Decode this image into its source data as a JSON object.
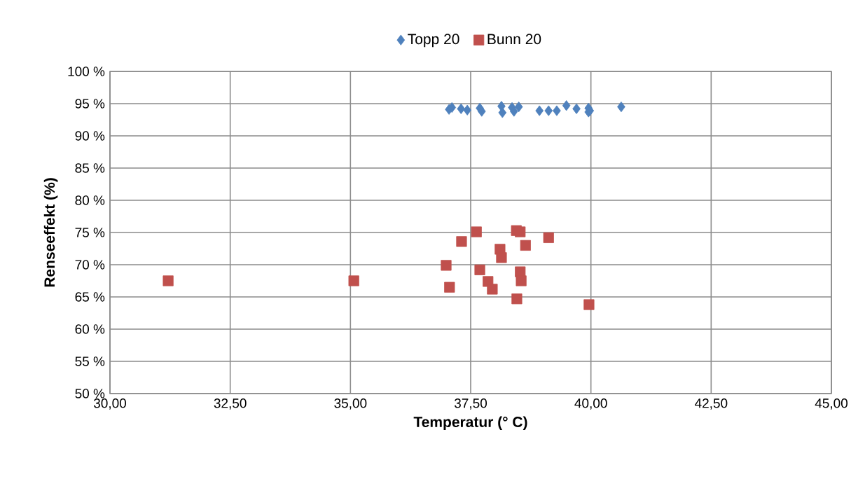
{
  "chart_data": {
    "type": "scatter",
    "xlabel": "Temperatur (° C)",
    "ylabel": "Renseeffekt (%)",
    "xlim": [
      30,
      45
    ],
    "ylim": [
      50,
      100
    ],
    "xticks": [
      {
        "value": 30,
        "label": "30,00"
      },
      {
        "value": 32.5,
        "label": "32,50"
      },
      {
        "value": 35,
        "label": "35,00"
      },
      {
        "value": 37.5,
        "label": "37,50"
      },
      {
        "value": 40,
        "label": "40,00"
      },
      {
        "value": 42.5,
        "label": "42,50"
      },
      {
        "value": 45,
        "label": "45,00"
      }
    ],
    "yticks": [
      {
        "value": 50,
        "label": "50 %"
      },
      {
        "value": 55,
        "label": "55 %"
      },
      {
        "value": 60,
        "label": "60 %"
      },
      {
        "value": 65,
        "label": "65 %"
      },
      {
        "value": 70,
        "label": "70 %"
      },
      {
        "value": 75,
        "label": "75 %"
      },
      {
        "value": 80,
        "label": "80 %"
      },
      {
        "value": 85,
        "label": "85 %"
      },
      {
        "value": 90,
        "label": "90 %"
      },
      {
        "value": 95,
        "label": "95 %"
      },
      {
        "value": 100,
        "label": "100 %"
      }
    ],
    "grid": true,
    "legend": "top",
    "series": [
      {
        "name": "Topp 20",
        "color": "#4f81bd",
        "marker": "diamond",
        "x": [
          37.05,
          37.11,
          37.3,
          37.43,
          37.69,
          37.73,
          38.14,
          38.16,
          38.36,
          38.4,
          38.5,
          38.93,
          39.12,
          39.29,
          39.49,
          39.7,
          39.95,
          39.95,
          39.98,
          40.63
        ],
        "values": [
          94.1,
          94.4,
          94.2,
          94.0,
          94.3,
          93.8,
          94.6,
          93.6,
          94.4,
          93.8,
          94.5,
          93.9,
          93.9,
          93.9,
          94.7,
          94.2,
          94.3,
          93.7,
          93.9,
          94.5
        ]
      },
      {
        "name": "Bunn 20",
        "color": "#c0504d",
        "marker": "square",
        "x": [
          31.21,
          35.07,
          37.62,
          37.31,
          38.45,
          38.53,
          39.12,
          38.64,
          38.11,
          38.14,
          36.99,
          37.69,
          38.53,
          38.55,
          37.06,
          37.86,
          37.95,
          38.46,
          39.96
        ],
        "values": [
          67.5,
          67.5,
          75.1,
          73.6,
          75.3,
          75.1,
          74.2,
          73.0,
          72.4,
          71.1,
          69.9,
          69.2,
          68.9,
          67.5,
          66.5,
          67.4,
          66.2,
          64.7,
          63.8
        ]
      }
    ]
  }
}
